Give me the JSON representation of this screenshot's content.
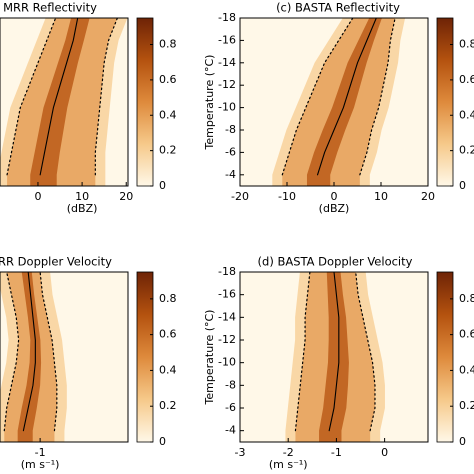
{
  "chart_data": [
    {
      "type": "heatmap",
      "title": "MRR Reflectivity",
      "xlabel": "(dBZ)",
      "xlim": [
        -8.6,
        20.4
      ],
      "xticks": [
        0,
        10,
        20
      ],
      "ylim": [
        -3,
        -18
      ],
      "yticks": [],
      "y": [
        -4,
        -6,
        -8,
        -10,
        -12,
        -14,
        -16,
        -18
      ],
      "series": [
        {
          "style": "solid",
          "color": "#000000",
          "values": [
            0.5,
            1.5,
            2.5,
            3.5,
            5,
            6.5,
            8,
            9
          ]
        },
        {
          "style": "dotted",
          "color": "#000000",
          "values": [
            -7,
            -6,
            -5,
            -4,
            -2,
            0,
            2,
            4
          ]
        },
        {
          "style": "dotted",
          "color": "#000000",
          "values": [
            13,
            13,
            13.5,
            14,
            14.5,
            15,
            16,
            18
          ]
        }
      ],
      "colorbar": {
        "lim": [
          0,
          0.95
        ],
        "ticks": [
          0,
          0.2,
          0.4,
          0.6,
          0.8
        ],
        "colors": [
          "#fff8e8",
          "#f6c98a",
          "#de8a3c",
          "#b4520f",
          "#6e2306"
        ]
      }
    },
    {
      "type": "heatmap",
      "title": "(c) BASTA Reflectivity",
      "xlabel": "(dBZ)",
      "ylabel": "Temperature (°C)",
      "xlim": [
        -20,
        20
      ],
      "xticks": [
        -20,
        -10,
        0,
        10,
        20
      ],
      "ylim": [
        -3,
        -18
      ],
      "yticks": [
        -4,
        -6,
        -8,
        -10,
        -12,
        -14,
        -16,
        -18
      ],
      "y": [
        -4,
        -6,
        -8,
        -10,
        -12,
        -14,
        -16,
        -18
      ],
      "series": [
        {
          "style": "solid",
          "color": "#000000",
          "values": [
            -3.5,
            -2,
            0,
            2,
            3.5,
            5,
            7,
            9
          ]
        },
        {
          "style": "dotted",
          "color": "#000000",
          "values": [
            -11,
            -9.5,
            -8,
            -6,
            -4,
            -2,
            1,
            4
          ]
        },
        {
          "style": "dotted",
          "color": "#000000",
          "values": [
            5.5,
            7,
            8,
            9.5,
            10.5,
            11.5,
            12,
            13
          ]
        }
      ],
      "colorbar": {
        "lim": [
          0,
          0.95
        ],
        "ticks": [
          0,
          0.2,
          0.4,
          0.6,
          0.8
        ],
        "colors": [
          "#fff8e8",
          "#f6c98a",
          "#de8a3c",
          "#b4520f",
          "#6e2306"
        ]
      }
    },
    {
      "type": "heatmap",
      "title": "RR Doppler Velocity",
      "xlabel": "(m s⁻¹)",
      "xlim": [
        -1.84,
        0.84
      ],
      "xticks": [
        -1
      ],
      "ylim": [
        -3,
        -18
      ],
      "yticks": [],
      "y": [
        -4,
        -6,
        -8,
        -10,
        -12,
        -14,
        -16,
        -18
      ],
      "series": [
        {
          "style": "solid",
          "color": "#000000",
          "values": [
            -1.35,
            -1.25,
            -1.15,
            -1.1,
            -1.1,
            -1.15,
            -1.2,
            -1.25
          ]
        },
        {
          "style": "dotted",
          "color": "#000000",
          "values": [
            -1.75,
            -1.7,
            -1.6,
            -1.5,
            -1.45,
            -1.5,
            -1.6,
            -1.7
          ]
        },
        {
          "style": "dotted",
          "color": "#000000",
          "values": [
            -0.7,
            -0.65,
            -0.65,
            -0.7,
            -0.75,
            -0.85,
            -0.95,
            -1.0
          ]
        }
      ],
      "colorbar": {
        "lim": [
          0,
          0.95
        ],
        "ticks": [
          0,
          0.2,
          0.4,
          0.6,
          0.8
        ],
        "colors": [
          "#fff8e8",
          "#f6c98a",
          "#de8a3c",
          "#b4520f",
          "#6e2306"
        ]
      }
    },
    {
      "type": "heatmap",
      "title": "(d) BASTA Doppler Velocity",
      "xlabel": "(m s⁻¹)",
      "ylabel": "Temperature (°C)",
      "xlim": [
        -3,
        0.9
      ],
      "xticks": [
        -3,
        -2,
        -1,
        0
      ],
      "ylim": [
        -3,
        -18
      ],
      "yticks": [
        -4,
        -6,
        -8,
        -10,
        -12,
        -14,
        -16,
        -18
      ],
      "y": [
        -4,
        -6,
        -8,
        -10,
        -12,
        -14,
        -16,
        -18
      ],
      "series": [
        {
          "style": "solid",
          "color": "#000000",
          "values": [
            -1.15,
            -1.05,
            -1.0,
            -0.95,
            -0.95,
            -0.95,
            -1.0,
            -1.05
          ]
        },
        {
          "style": "dotted",
          "color": "#000000",
          "values": [
            -1.85,
            -1.8,
            -1.75,
            -1.7,
            -1.65,
            -1.65,
            -1.6,
            -1.55
          ]
        },
        {
          "style": "dotted",
          "color": "#000000",
          "values": [
            -0.3,
            -0.2,
            -0.2,
            -0.25,
            -0.35,
            -0.45,
            -0.55,
            -0.6
          ]
        }
      ],
      "colorbar": {
        "lim": [
          0,
          0.95
        ],
        "ticks": [
          0,
          0.2,
          0.4,
          0.6,
          0.8
        ],
        "colors": [
          "#fff8e8",
          "#f6c98a",
          "#de8a3c",
          "#b4520f",
          "#6e2306"
        ]
      }
    }
  ]
}
